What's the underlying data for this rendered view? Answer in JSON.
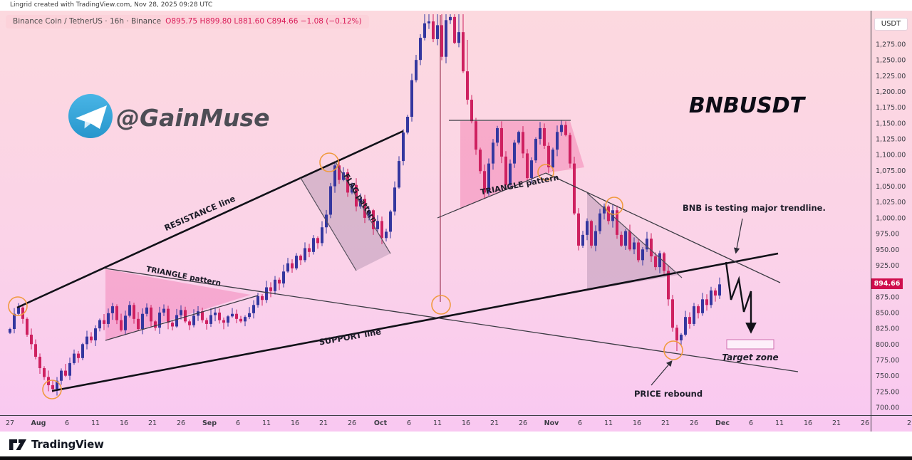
{
  "header": {
    "creator_line": "Lingrid created with TradingView.com, Nov 28, 2025 09:28 UTC"
  },
  "symbol_bar": {
    "left": "Binance Coin / TetherUS · 16h · Binance",
    "right": "O895.75  H899.80  L881.60  C894.66  −1.08 (−0.12%)"
  },
  "watermark": {
    "handle": "@GainMuse",
    "icon": "telegram-icon"
  },
  "title": "BNBUSDT",
  "axis": {
    "currency_button": "USDT",
    "last_price": "894.66",
    "price_labels": [
      "1,275.00",
      "1,250.00",
      "1,225.00",
      "1,200.00",
      "1,175.00",
      "1,150.00",
      "1,125.00",
      "1,100.00",
      "1,075.00",
      "1,050.00",
      "1,025.00",
      "1,000.00",
      "975.00",
      "950.00",
      "925.00",
      "900.00",
      "875.00",
      "850.00",
      "825.00",
      "800.00",
      "775.00",
      "750.00",
      "725.00",
      "700.00"
    ],
    "time_ticks": [
      {
        "label": "27"
      },
      {
        "label": "Aug",
        "month": true
      },
      {
        "label": "6"
      },
      {
        "label": "11"
      },
      {
        "label": "16"
      },
      {
        "label": "21"
      },
      {
        "label": "26"
      },
      {
        "label": "Sep",
        "month": true
      },
      {
        "label": "6"
      },
      {
        "label": "11"
      },
      {
        "label": "16"
      },
      {
        "label": "21"
      },
      {
        "label": "26"
      },
      {
        "label": "Oct",
        "month": true
      },
      {
        "label": "6"
      },
      {
        "label": "11"
      },
      {
        "label": "16"
      },
      {
        "label": "21"
      },
      {
        "label": "26"
      },
      {
        "label": "Nov",
        "month": true
      },
      {
        "label": "6"
      },
      {
        "label": "11"
      },
      {
        "label": "16"
      },
      {
        "label": "21"
      },
      {
        "label": "26"
      },
      {
        "label": "Dec",
        "month": true
      },
      {
        "label": "6"
      },
      {
        "label": "11"
      },
      {
        "label": "16"
      },
      {
        "label": "21"
      },
      {
        "label": "26"
      }
    ],
    "partial_tick": "2"
  },
  "annotations": {
    "resistance": "RESISTANCE line",
    "support": "SUPPORT line",
    "triangle_left": "TRIANGLE pattern",
    "triangle_mid": "TRIANGLE pattern",
    "flag": "FLAG pattern",
    "note": "BNB is testing major trendline.",
    "target": "Target zone",
    "rebound": "PRICE rebound"
  },
  "footer": {
    "brand": "TradingView"
  },
  "chart_data": {
    "type": "candlestick",
    "symbol": "BNBUSDT",
    "name": "Binance Coin / TetherUS",
    "interval": "16h",
    "exchange": "Binance",
    "ohlc_last": {
      "open": 895.75,
      "high": 899.8,
      "low": 881.6,
      "close": 894.66,
      "change": -1.08,
      "change_pct": -0.12
    },
    "price_axis": {
      "min": 700,
      "max": 1275,
      "step": 25,
      "unit": "USDT"
    },
    "time_axis": {
      "start": "Jul 27",
      "end": "Dec 26",
      "labeled_months": [
        "Aug",
        "Sep",
        "Oct",
        "Nov",
        "Dec"
      ]
    },
    "first_open": 818,
    "closes": [
      824,
      848,
      858,
      840,
      815,
      800,
      780,
      762,
      748,
      735,
      729,
      742,
      758,
      750,
      770,
      785,
      778,
      800,
      812,
      806,
      825,
      838,
      832,
      849,
      860,
      838,
      822,
      845,
      862,
      840,
      824,
      848,
      858,
      836,
      826,
      850,
      856,
      834,
      828,
      846,
      854,
      836,
      830,
      845,
      852,
      838,
      832,
      846,
      850,
      838,
      834,
      844,
      848,
      840,
      836,
      843,
      849,
      862,
      876,
      870,
      890,
      884,
      902,
      896,
      915,
      928,
      920,
      940,
      933,
      952,
      946,
      968,
      960,
      985,
      1005,
      1050,
      1083,
      1060,
      1072,
      1040,
      1052,
      1018,
      1030,
      1000,
      1012,
      982,
      995,
      968,
      978,
      1010,
      1048,
      1090,
      1135,
      1160,
      1218,
      1250,
      1285,
      1308,
      1311,
      1283,
      1305,
      1255,
      1313,
      1318,
      1277,
      1294,
      1232,
      1187,
      1153,
      1108,
      1074,
      1040,
      1086,
      1119,
      1142,
      1097,
      1052,
      1086,
      1119,
      1136,
      1102,
      1063,
      1091,
      1125,
      1142,
      1114,
      1080,
      1108,
      1136,
      1147,
      1131,
      1086,
      1007,
      956,
      973,
      995,
      956,
      979,
      1007,
      1018,
      995,
      1012,
      973,
      956,
      979,
      950,
      961,
      933,
      950,
      967,
      939,
      922,
      944,
      916,
      871,
      826,
      806,
      815,
      843,
      832,
      860,
      849,
      871,
      862,
      885,
      877,
      894.66
    ],
    "colors": {
      "up": "#34379f",
      "down": "#ce2160"
    },
    "trendlines": [
      {
        "name": "RESISTANCE line",
        "style": "thick",
        "from_price": 855,
        "to_price": 1137
      },
      {
        "name": "SUPPORT line",
        "style": "thick",
        "from_price": 724,
        "to_price": 942
      },
      {
        "name": "descending trendline through left triangle top and price-rebound low",
        "style": "thin",
        "from_price": 920,
        "to_price": 757
      },
      {
        "name": "descending trendline from mid triangle apex",
        "style": "thin",
        "from_price": 1072,
        "to_price": 897
      }
    ],
    "patterns": [
      "TRIANGLE pattern (Aug)",
      "FLAG pattern (Sep)",
      "TRIANGLE pattern (Oct)",
      "falling wedge (Nov)"
    ],
    "highlight_circle_prices": [
      858,
      728,
      1088,
      862,
      1072,
      1019,
      788
    ],
    "target_zone_price_range": [
      792,
      807
    ],
    "crash_event_vertical_line_price_low": 862
  }
}
